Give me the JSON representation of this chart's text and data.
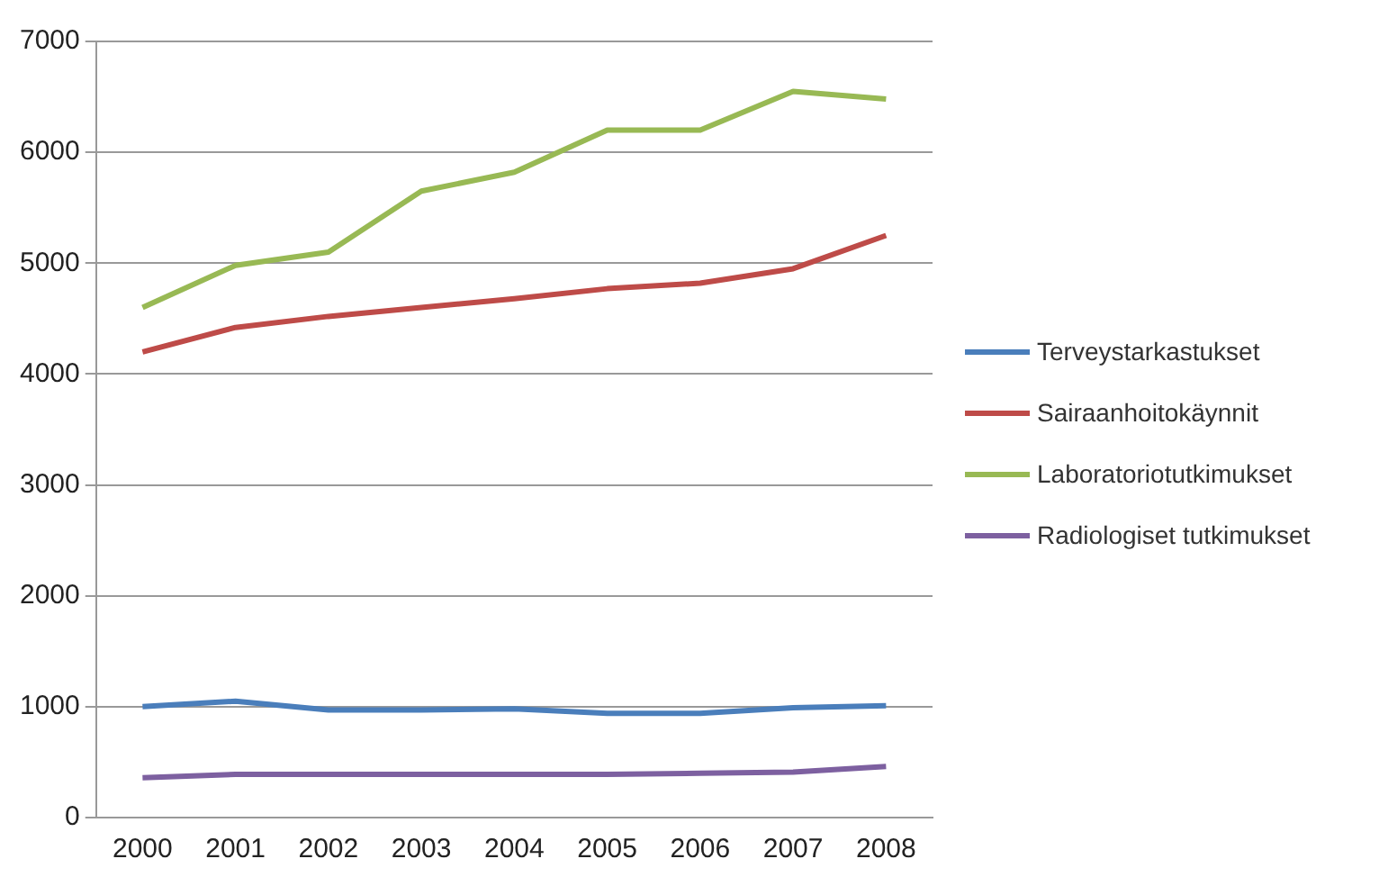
{
  "chart_data": {
    "type": "line",
    "categories": [
      "2000",
      "2001",
      "2002",
      "2003",
      "2004",
      "2005",
      "2006",
      "2007",
      "2008"
    ],
    "series": [
      {
        "name": "Terveystarkastukset",
        "color": "#4a7ebb",
        "values": [
          1000,
          1050,
          970,
          970,
          980,
          940,
          940,
          990,
          1010
        ]
      },
      {
        "name": "Sairaanhoitokäynnit",
        "color": "#be4b48",
        "values": [
          4200,
          4420,
          4520,
          4600,
          4680,
          4770,
          4820,
          4950,
          5250
        ]
      },
      {
        "name": "Laboratoriotutkimukset",
        "color": "#98b954",
        "values": [
          4600,
          4980,
          5100,
          5650,
          5820,
          6200,
          6200,
          6550,
          6480
        ]
      },
      {
        "name": "Radiologiset tutkimukset",
        "color": "#7d60a0",
        "values": [
          360,
          390,
          390,
          390,
          390,
          390,
          400,
          410,
          460
        ]
      }
    ],
    "ylim": [
      0,
      7000
    ],
    "yticks": [
      0,
      1000,
      2000,
      3000,
      4000,
      5000,
      6000,
      7000
    ],
    "grid": "y",
    "legend": "right",
    "marker": "none",
    "line_style": "solid"
  }
}
